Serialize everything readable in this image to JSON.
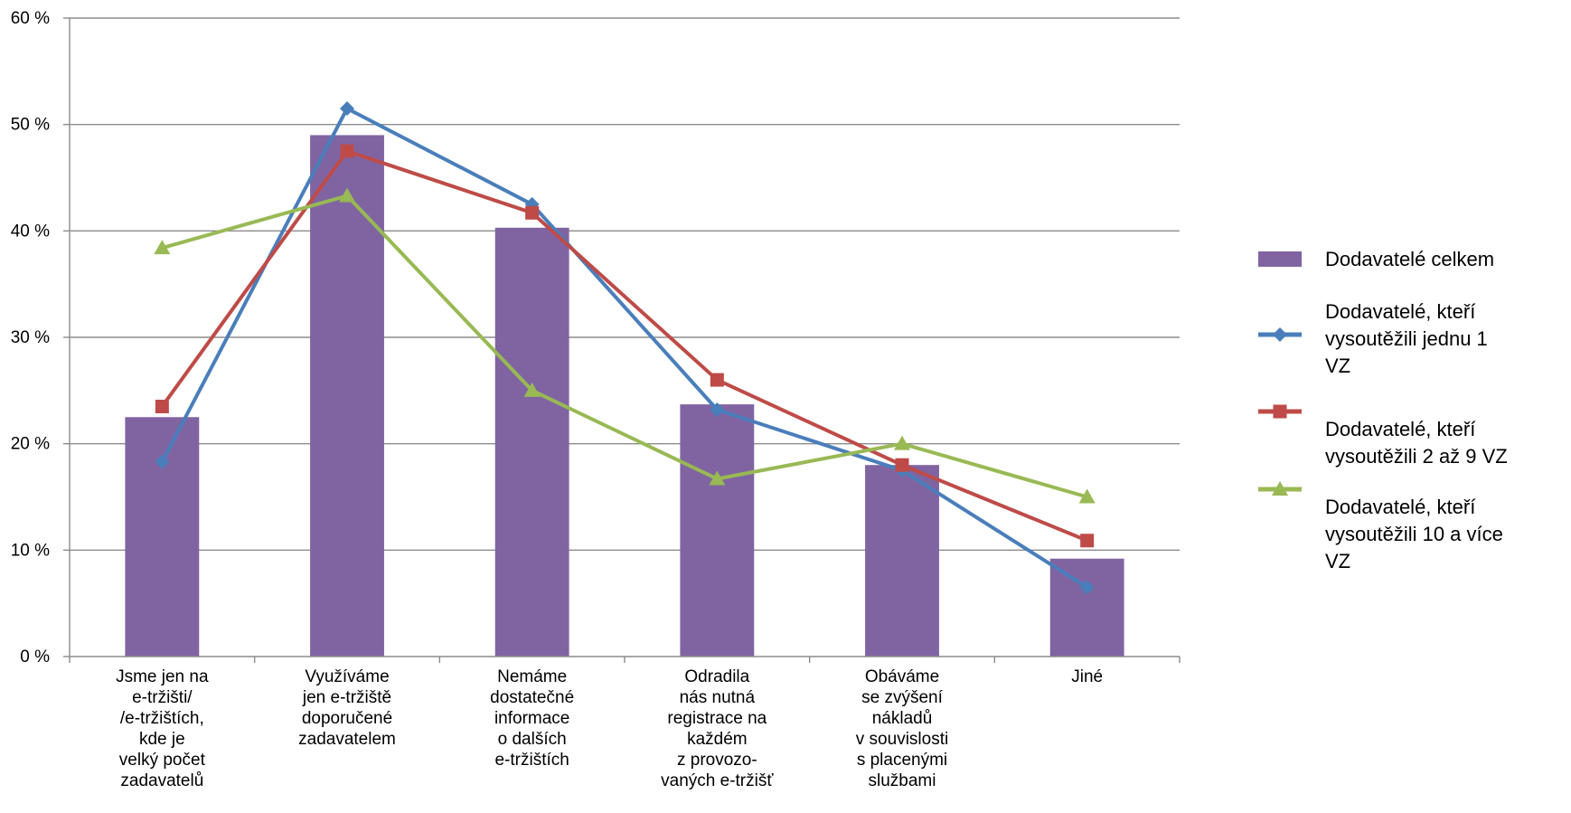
{
  "chart_data": {
    "type": "bar+line",
    "y_ticks": [
      "0 %",
      "10 %",
      "20 %",
      "30 %",
      "40 %",
      "50 %",
      "60 %"
    ],
    "ylim": [
      0,
      60
    ],
    "grid": true,
    "legend_position": "right",
    "categories": [
      [
        "Jsme jen na",
        "e-tržišti/",
        "/e-tržištích,",
        "kde je",
        "velký počet",
        "zadavatelů"
      ],
      [
        "Využíváme",
        "jen e-tržiště",
        "doporučené",
        "zadavatelem"
      ],
      [
        "Nemáme",
        "dostatečné",
        "informace",
        "o dalších",
        "e-tržištích"
      ],
      [
        "Odradila",
        "nás nutná",
        "registrace na",
        "každém",
        "z provozo-",
        "vaných e-tržišť"
      ],
      [
        "Obáváme",
        "se zvýšení",
        "nákladů",
        "v souvislosti",
        "s placenými",
        "službami"
      ],
      [
        "Jiné"
      ]
    ],
    "bars": {
      "name": [
        "Dodavatelé celkem"
      ],
      "color": "#8064a2",
      "values": [
        22.5,
        49,
        40.3,
        23.7,
        18,
        9.2
      ]
    },
    "series": [
      {
        "name": [
          "Dodavatelé, kteří",
          "vysoutěžili jednu 1",
          "VZ"
        ],
        "color": "#4a7ebb",
        "marker": "diamond",
        "values": [
          18.3,
          51.5,
          42.5,
          23.2,
          17.5,
          6.5
        ]
      },
      {
        "name": [
          "Dodavatelé, kteří",
          "vysoutěžili 2 až 9 VZ"
        ],
        "color": "#be4b48",
        "marker": "square",
        "values": [
          23.5,
          47.5,
          41.7,
          26,
          18,
          10.9
        ]
      },
      {
        "name": [
          "Dodavatelé, kteří",
          "vysoutěžili 10 a více",
          "VZ"
        ],
        "color": "#98b954",
        "marker": "triangle",
        "values": [
          38.4,
          43.3,
          25,
          16.7,
          20,
          15
        ]
      }
    ]
  }
}
